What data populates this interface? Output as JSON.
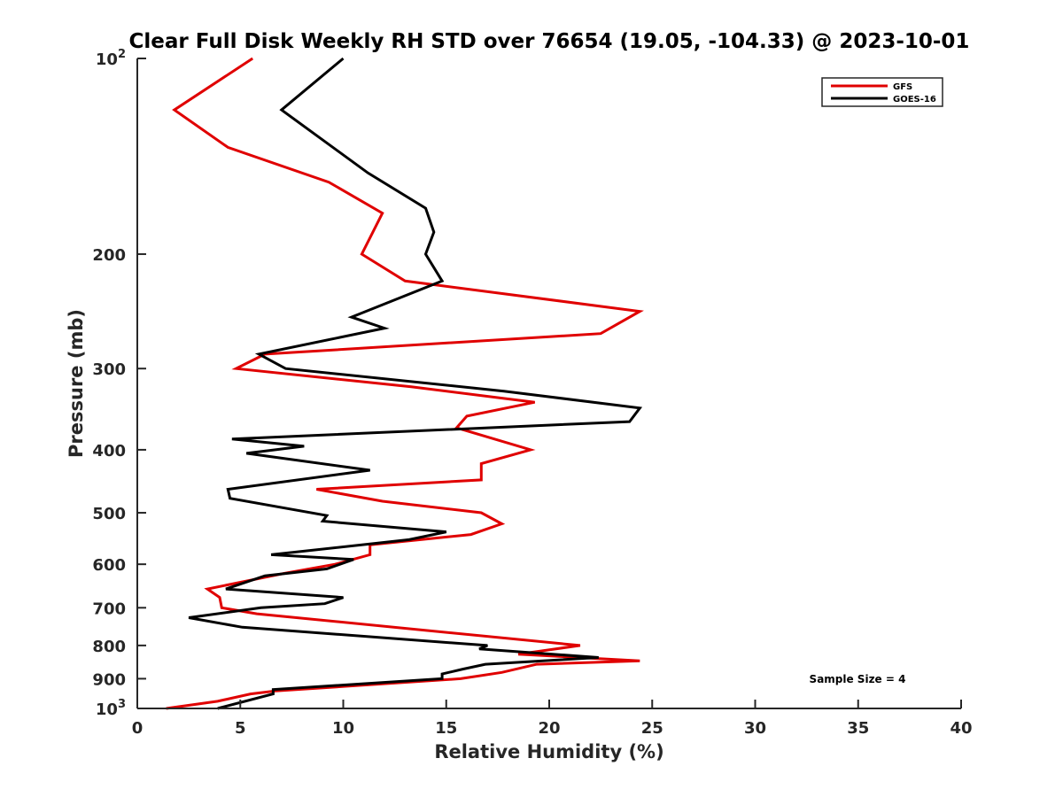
{
  "chart_data": {
    "type": "line",
    "title": "Clear Full Disk Weekly RH STD over 76654 (19.05, -104.33) @ 2023-10-01",
    "xlabel": "Relative Humidity (%)",
    "ylabel": "Pressure (mb)",
    "xlim": [
      0,
      40
    ],
    "ylim": [
      1000,
      100
    ],
    "yscale": "log",
    "yreverse": true,
    "grid": false,
    "legend_position": "top-right",
    "xticks": [
      0,
      5,
      10,
      15,
      20,
      25,
      30,
      35,
      40
    ],
    "xtick_labels": [
      "0",
      "5",
      "10",
      "15",
      "20",
      "25",
      "30",
      "35",
      "40"
    ],
    "yticks": [
      100,
      200,
      300,
      400,
      500,
      600,
      700,
      800,
      900,
      1000
    ],
    "ytick_labels": [
      {
        "base": "10",
        "sup": "2"
      },
      {
        "base": "200",
        "sup": ""
      },
      {
        "base": "300",
        "sup": ""
      },
      {
        "base": "400",
        "sup": ""
      },
      {
        "base": "500",
        "sup": ""
      },
      {
        "base": "600",
        "sup": ""
      },
      {
        "base": "700",
        "sup": ""
      },
      {
        "base": "800",
        "sup": ""
      },
      {
        "base": "900",
        "sup": ""
      },
      {
        "base": "10",
        "sup": "3"
      }
    ],
    "annotation": "Sample Size = 4",
    "series": [
      {
        "name": "GFS",
        "color": "#e00000",
        "pressure": [
          100,
          120,
          137,
          155,
          173,
          200,
          220,
          245,
          265,
          285,
          300,
          320,
          338,
          355,
          370,
          400,
          420,
          445,
          460,
          480,
          500,
          520,
          540,
          560,
          580,
          600,
          620,
          655,
          675,
          700,
          715,
          800,
          825,
          845,
          855,
          880,
          900,
          940,
          950,
          975,
          1000
        ],
        "values": [
          5.6,
          1.8,
          4.4,
          9.3,
          11.9,
          10.9,
          13.0,
          24.4,
          22.5,
          6.2,
          4.8,
          13.3,
          19.3,
          16.0,
          15.5,
          19.1,
          16.7,
          16.7,
          8.7,
          11.9,
          16.7,
          17.7,
          16.2,
          11.3,
          11.3,
          9.6,
          7.1,
          3.4,
          4.0,
          4.1,
          5.8,
          21.5,
          18.5,
          24.4,
          19.4,
          17.7,
          15.7,
          6.7,
          5.5,
          3.9,
          1.4
        ]
      },
      {
        "name": "GOES-16",
        "color": "#000000",
        "pressure": [
          100,
          120,
          150,
          170,
          185,
          200,
          220,
          250,
          260,
          285,
          300,
          325,
          345,
          362,
          385,
          395,
          405,
          430,
          460,
          475,
          505,
          515,
          535,
          550,
          580,
          590,
          610,
          625,
          655,
          675,
          690,
          700,
          725,
          750,
          800,
          810,
          835,
          855,
          870,
          885,
          900,
          935,
          950,
          950,
          1000
        ],
        "values": [
          10.0,
          7.0,
          11.2,
          14.0,
          14.4,
          14.0,
          14.8,
          10.4,
          12.0,
          5.9,
          7.2,
          17.8,
          24.4,
          23.9,
          4.6,
          8.1,
          5.3,
          11.3,
          4.4,
          4.5,
          9.2,
          9.0,
          15.0,
          13.2,
          6.5,
          10.5,
          9.2,
          6.2,
          4.3,
          10.0,
          9.1,
          6.0,
          2.5,
          5.1,
          17.0,
          16.6,
          22.4,
          16.9,
          15.8,
          14.8,
          14.8,
          6.6,
          6.6,
          6.6,
          3.9
        ]
      }
    ]
  }
}
